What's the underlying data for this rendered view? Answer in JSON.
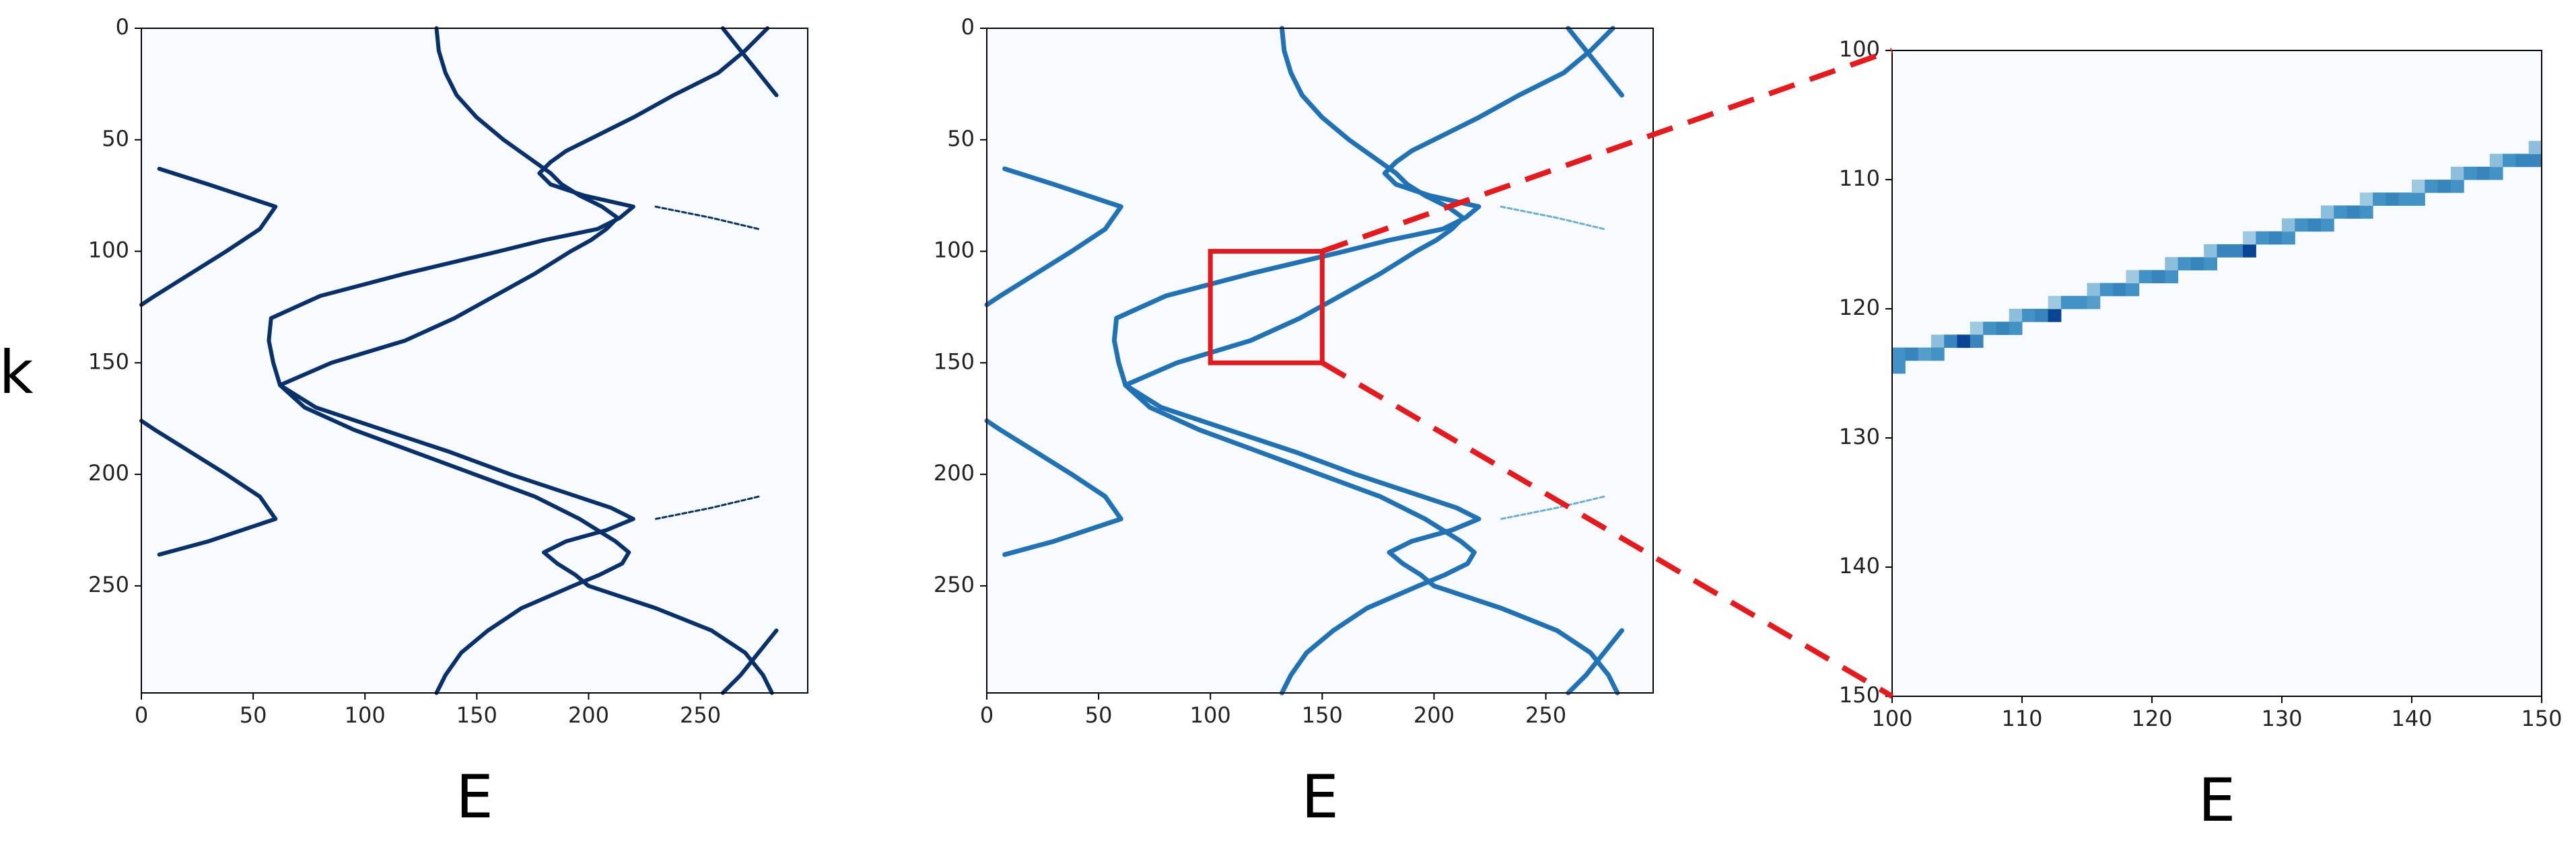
{
  "figure": {
    "ylabel": "k",
    "colors": {
      "band_dark": "#08306b",
      "band_mid": "#2171b5",
      "band_light": "#6baed6",
      "band_pale": "#9ecae1",
      "background": "#f7fbff",
      "frame": "#000000",
      "highlight": "#e6191c"
    }
  },
  "chart_data": [
    {
      "type": "heatmap",
      "panel": "left",
      "colormap": "Blues",
      "xlabel": "E",
      "ylabel": "k",
      "xlim": [
        0,
        298
      ],
      "ylim": [
        298,
        0
      ],
      "xticks": [
        0,
        50,
        100,
        150,
        200,
        250
      ],
      "yticks": [
        0,
        50,
        100,
        150,
        200,
        250
      ],
      "series": [
        {
          "k": [
            0,
            10,
            20,
            30,
            40,
            50,
            60,
            65,
            70,
            75,
            80,
            85,
            90,
            95,
            100,
            110,
            120,
            130,
            140,
            150,
            160,
            170,
            180,
            190,
            200,
            210,
            215,
            220,
            225,
            230,
            235,
            240,
            245,
            250,
            260,
            270,
            280,
            290,
            298
          ],
          "E": [
            132,
            133,
            136,
            141,
            150,
            162,
            176,
            183,
            188,
            196,
            206,
            213,
            208,
            201,
            192,
            176,
            158,
            140,
            118,
            85,
            62,
            73,
            95,
            122,
            149,
            176,
            186,
            196,
            204,
            212,
            218,
            215,
            205,
            193,
            170,
            155,
            143,
            136,
            132
          ]
        },
        {
          "k": [
            0,
            10,
            20,
            30,
            40,
            50,
            55,
            60,
            65,
            70,
            75,
            80,
            85,
            90,
            95,
            100,
            110,
            120,
            130,
            140,
            150,
            160,
            170,
            180,
            190,
            200,
            210,
            215,
            220,
            225,
            230,
            235,
            240,
            245,
            250,
            260,
            270,
            280,
            290,
            298
          ],
          "E": [
            280,
            270,
            258,
            238,
            220,
            200,
            190,
            183,
            178,
            183,
            198,
            220,
            214,
            204,
            180,
            160,
            118,
            80,
            58,
            57,
            59,
            62,
            78,
            108,
            138,
            165,
            195,
            210,
            220,
            208,
            190,
            180,
            186,
            194,
            200,
            230,
            255,
            270,
            278,
            282
          ]
        },
        {
          "k": [
            63,
            70,
            80,
            90,
            100,
            110,
            120,
            124
          ],
          "E": [
            8,
            30,
            60,
            53,
            38,
            22,
            6,
            0
          ]
        },
        {
          "k": [
            176,
            180,
            190,
            200,
            210,
            220,
            230,
            236
          ],
          "E": [
            0,
            6,
            22,
            38,
            53,
            60,
            30,
            8
          ]
        },
        {
          "k": [
            0,
            10,
            20,
            30
          ],
          "E": [
            260,
            268,
            276,
            284
          ]
        },
        {
          "k": [
            270,
            280,
            290,
            298
          ],
          "E": [
            284,
            276,
            268,
            260
          ]
        },
        {
          "k": [
            80,
            85,
            90
          ],
          "E": [
            230,
            255,
            276
          ]
        },
        {
          "k": [
            210,
            215,
            220
          ],
          "E": [
            276,
            255,
            230
          ]
        }
      ]
    },
    {
      "type": "heatmap",
      "panel": "middle",
      "colormap": "Blues",
      "xlabel": "E",
      "xlim": [
        0,
        298
      ],
      "ylim": [
        298,
        0
      ],
      "xticks": [
        0,
        50,
        100,
        150,
        200,
        250
      ],
      "yticks": [
        0,
        50,
        100,
        150,
        200,
        250
      ],
      "highlight_box": {
        "E": [
          100,
          150
        ],
        "k": [
          100,
          150
        ]
      },
      "series_same_as": "left"
    },
    {
      "type": "heatmap",
      "panel": "right",
      "colormap": "Blues",
      "xlabel": "E",
      "xlim": [
        100,
        150
      ],
      "ylim": [
        150,
        100
      ],
      "xticks": [
        100,
        110,
        120,
        130,
        140,
        150
      ],
      "yticks": [
        100,
        110,
        120,
        130,
        140,
        150
      ],
      "pixels": [
        {
          "E": 100,
          "k": 123,
          "v": 0.55
        },
        {
          "E": 100,
          "k": 124,
          "v": 0.55
        },
        {
          "E": 101,
          "k": 123,
          "v": 0.6
        },
        {
          "E": 102,
          "k": 123,
          "v": 0.5
        },
        {
          "E": 103,
          "k": 122,
          "v": 0.35
        },
        {
          "E": 103,
          "k": 123,
          "v": 0.55
        },
        {
          "E": 104,
          "k": 122,
          "v": 0.6
        },
        {
          "E": 105,
          "k": 122,
          "v": 0.85
        },
        {
          "E": 106,
          "k": 121,
          "v": 0.3
        },
        {
          "E": 106,
          "k": 122,
          "v": 0.6
        },
        {
          "E": 107,
          "k": 121,
          "v": 0.55
        },
        {
          "E": 108,
          "k": 121,
          "v": 0.6
        },
        {
          "E": 109,
          "k": 120,
          "v": 0.35
        },
        {
          "E": 109,
          "k": 121,
          "v": 0.55
        },
        {
          "E": 110,
          "k": 120,
          "v": 0.55
        },
        {
          "E": 111,
          "k": 120,
          "v": 0.6
        },
        {
          "E": 112,
          "k": 120,
          "v": 0.85
        },
        {
          "E": 112,
          "k": 119,
          "v": 0.3
        },
        {
          "E": 113,
          "k": 119,
          "v": 0.55
        },
        {
          "E": 114,
          "k": 119,
          "v": 0.55
        },
        {
          "E": 115,
          "k": 118,
          "v": 0.35
        },
        {
          "E": 115,
          "k": 119,
          "v": 0.5
        },
        {
          "E": 116,
          "k": 118,
          "v": 0.55
        },
        {
          "E": 117,
          "k": 118,
          "v": 0.6
        },
        {
          "E": 118,
          "k": 118,
          "v": 0.55
        },
        {
          "E": 118,
          "k": 117,
          "v": 0.3
        },
        {
          "E": 119,
          "k": 117,
          "v": 0.55
        },
        {
          "E": 120,
          "k": 117,
          "v": 0.6
        },
        {
          "E": 121,
          "k": 117,
          "v": 0.55
        },
        {
          "E": 121,
          "k": 116,
          "v": 0.35
        },
        {
          "E": 122,
          "k": 116,
          "v": 0.55
        },
        {
          "E": 123,
          "k": 116,
          "v": 0.6
        },
        {
          "E": 124,
          "k": 116,
          "v": 0.55
        },
        {
          "E": 124,
          "k": 115,
          "v": 0.35
        },
        {
          "E": 125,
          "k": 115,
          "v": 0.6
        },
        {
          "E": 126,
          "k": 115,
          "v": 0.6
        },
        {
          "E": 127,
          "k": 115,
          "v": 0.85
        },
        {
          "E": 127,
          "k": 114,
          "v": 0.3
        },
        {
          "E": 128,
          "k": 114,
          "v": 0.55
        },
        {
          "E": 129,
          "k": 114,
          "v": 0.6
        },
        {
          "E": 130,
          "k": 114,
          "v": 0.55
        },
        {
          "E": 130,
          "k": 113,
          "v": 0.35
        },
        {
          "E": 131,
          "k": 113,
          "v": 0.55
        },
        {
          "E": 132,
          "k": 113,
          "v": 0.6
        },
        {
          "E": 133,
          "k": 113,
          "v": 0.55
        },
        {
          "E": 133,
          "k": 112,
          "v": 0.35
        },
        {
          "E": 134,
          "k": 112,
          "v": 0.55
        },
        {
          "E": 135,
          "k": 112,
          "v": 0.6
        },
        {
          "E": 136,
          "k": 112,
          "v": 0.55
        },
        {
          "E": 136,
          "k": 111,
          "v": 0.3
        },
        {
          "E": 137,
          "k": 111,
          "v": 0.55
        },
        {
          "E": 138,
          "k": 111,
          "v": 0.6
        },
        {
          "E": 139,
          "k": 111,
          "v": 0.55
        },
        {
          "E": 140,
          "k": 111,
          "v": 0.55
        },
        {
          "E": 140,
          "k": 110,
          "v": 0.3
        },
        {
          "E": 141,
          "k": 110,
          "v": 0.55
        },
        {
          "E": 142,
          "k": 110,
          "v": 0.6
        },
        {
          "E": 143,
          "k": 110,
          "v": 0.55
        },
        {
          "E": 143,
          "k": 109,
          "v": 0.35
        },
        {
          "E": 144,
          "k": 109,
          "v": 0.55
        },
        {
          "E": 145,
          "k": 109,
          "v": 0.6
        },
        {
          "E": 146,
          "k": 109,
          "v": 0.55
        },
        {
          "E": 146,
          "k": 108,
          "v": 0.35
        },
        {
          "E": 147,
          "k": 108,
          "v": 0.55
        },
        {
          "E": 148,
          "k": 108,
          "v": 0.6
        },
        {
          "E": 149,
          "k": 108,
          "v": 0.6
        },
        {
          "E": 149,
          "k": 107,
          "v": 0.35
        }
      ]
    }
  ]
}
